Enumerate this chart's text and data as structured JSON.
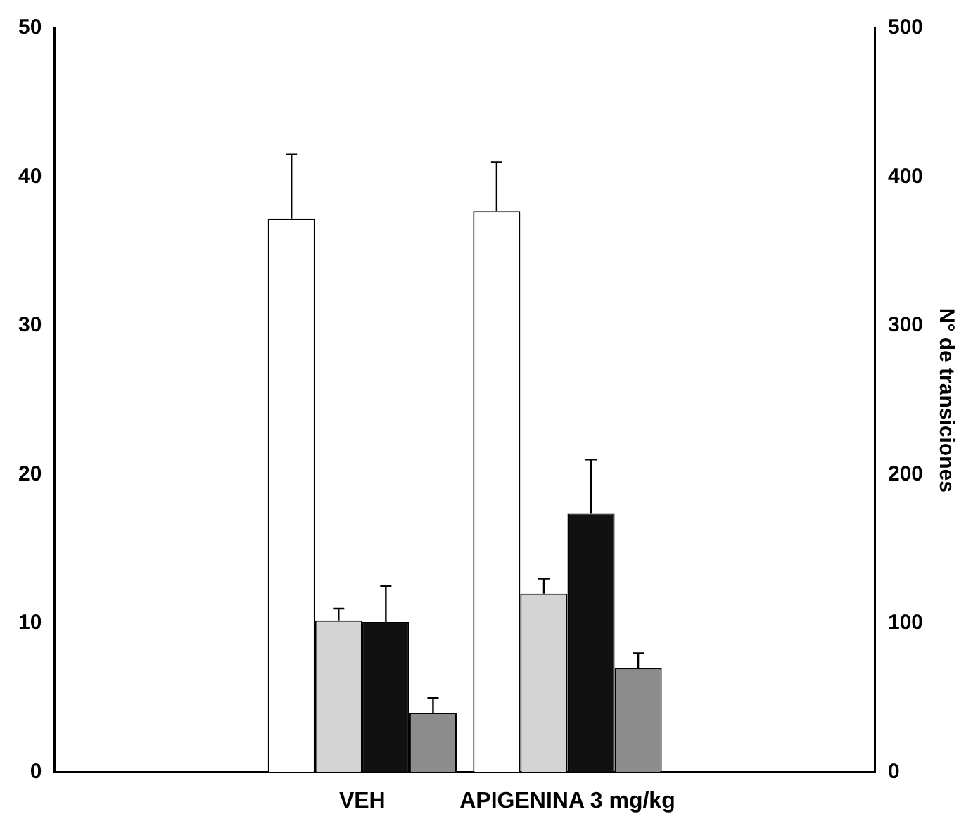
{
  "chart_data": {
    "type": "bar",
    "y2label": "N° de transiciones",
    "categories": [
      null,
      "VEH",
      "APIGENINA 3 mg/kg",
      null
    ],
    "series": [
      {
        "color": "#ffffff",
        "values": [
          null,
          37.2,
          37.7,
          null
        ],
        "errors": [
          null,
          [
            37.2,
            41.5
          ],
          [
            37.7,
            41
          ],
          null
        ]
      },
      {
        "color": "#d4d4d4",
        "values": [
          null,
          10.2,
          12,
          null
        ],
        "errors": [
          null,
          [
            10.2,
            11
          ],
          [
            12,
            13
          ],
          null
        ]
      },
      {
        "color": "#111111",
        "values": [
          null,
          10.1,
          17.4,
          null
        ],
        "errors": [
          null,
          [
            10.1,
            12.5
          ],
          [
            17.4,
            21
          ],
          null
        ]
      },
      {
        "color": "#8c8c8c",
        "values": [
          null,
          4,
          7,
          null
        ],
        "errors": [
          null,
          [
            4,
            5
          ],
          [
            7,
            8
          ],
          null
        ]
      }
    ],
    "ylim": [
      0,
      50
    ],
    "yticks": [
      0,
      10,
      20,
      30,
      40,
      50
    ],
    "y2lim": [
      0,
      500
    ],
    "y2ticks": [
      0,
      100,
      200,
      300,
      400,
      500
    ],
    "grid": false,
    "legend": false
  }
}
